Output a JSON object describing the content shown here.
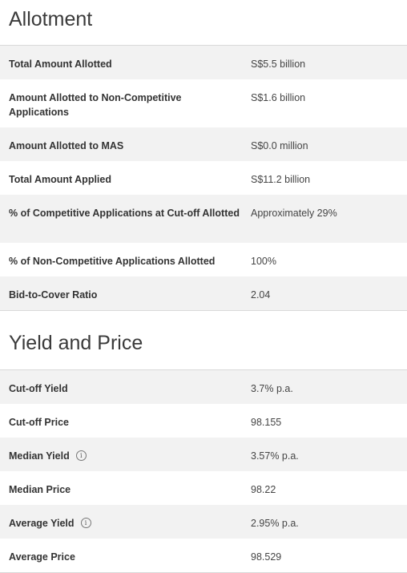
{
  "allotment": {
    "title": "Allotment",
    "rows": [
      {
        "label": "Total Amount Allotted",
        "value": "S$5.5 billion"
      },
      {
        "label": "Amount Allotted to Non-Competitive Applications",
        "value": "S$1.6 billion"
      },
      {
        "label": "Amount Allotted to MAS",
        "value": "S$0.0 million"
      },
      {
        "label": "Total Amount Applied",
        "value": "S$11.2 billion"
      },
      {
        "label": "% of Competitive Applications at Cut-off Allotted",
        "value": "Approximately 29%"
      },
      {
        "label": "% of Non-Competitive Applications Allotted",
        "value": "100%"
      },
      {
        "label": "Bid-to-Cover Ratio",
        "value": "2.04"
      }
    ]
  },
  "yield_price": {
    "title": "Yield and Price",
    "rows": [
      {
        "label": "Cut-off Yield",
        "value": "3.7% p.a."
      },
      {
        "label": "Cut-off Price",
        "value": "98.155"
      },
      {
        "label": "Median Yield",
        "value": "3.57% p.a.",
        "icon": "info-icon"
      },
      {
        "label": "Median Price",
        "value": "98.22"
      },
      {
        "label": "Average Yield",
        "value": "2.95% p.a.",
        "icon": "info-icon"
      },
      {
        "label": "Average Price",
        "value": "98.529"
      }
    ]
  },
  "info_glyph": "i"
}
